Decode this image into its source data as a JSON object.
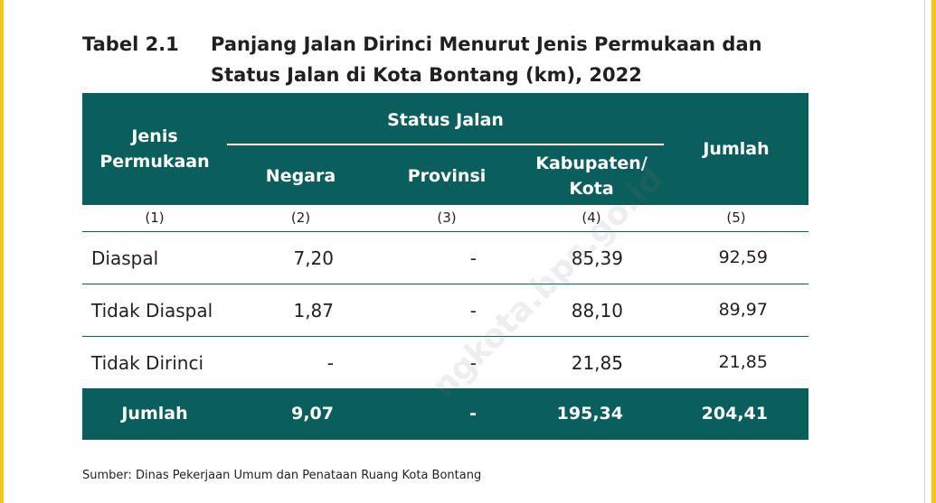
{
  "title": {
    "label": "Tabel 2.1",
    "text": "Panjang Jalan Dirinci Menurut Jenis Permukaan dan Status Jalan di Kota Bontang (km), 2022"
  },
  "table": {
    "headers": {
      "jenis": "Jenis Permukaan",
      "status": "Status Jalan",
      "negara": "Negara",
      "provinsi": "Provinsi",
      "kabupaten": "Kabupaten/ Kota",
      "jumlah": "Jumlah"
    },
    "col_numbers": [
      "(1)",
      "(2)",
      "(3)",
      "(4)",
      "(5)"
    ],
    "rows": [
      {
        "label": "Diaspal",
        "negara": "7,20",
        "provinsi": "-",
        "kabupaten": "85,39",
        "jumlah": "92,59"
      },
      {
        "label": "Tidak Diaspal",
        "negara": "1,87",
        "provinsi": "-",
        "kabupaten": "88,10",
        "jumlah": "89,97"
      },
      {
        "label": "Tidak Dirinci",
        "negara": "-",
        "provinsi": "-",
        "kabupaten": "21,85",
        "jumlah": "21,85"
      }
    ],
    "total": {
      "label": "Jumlah",
      "negara": "9,07",
      "provinsi": "-",
      "kabupaten": "195,34",
      "jumlah": "204,41"
    }
  },
  "source": "Sumber: Dinas Pekerjaan Umum dan Penataan Ruang Kota Bontang",
  "watermark": "ngkota.bps.go.id",
  "colors": {
    "header_bg": "#0a5e5c",
    "accent_bar": "#f5c518"
  }
}
